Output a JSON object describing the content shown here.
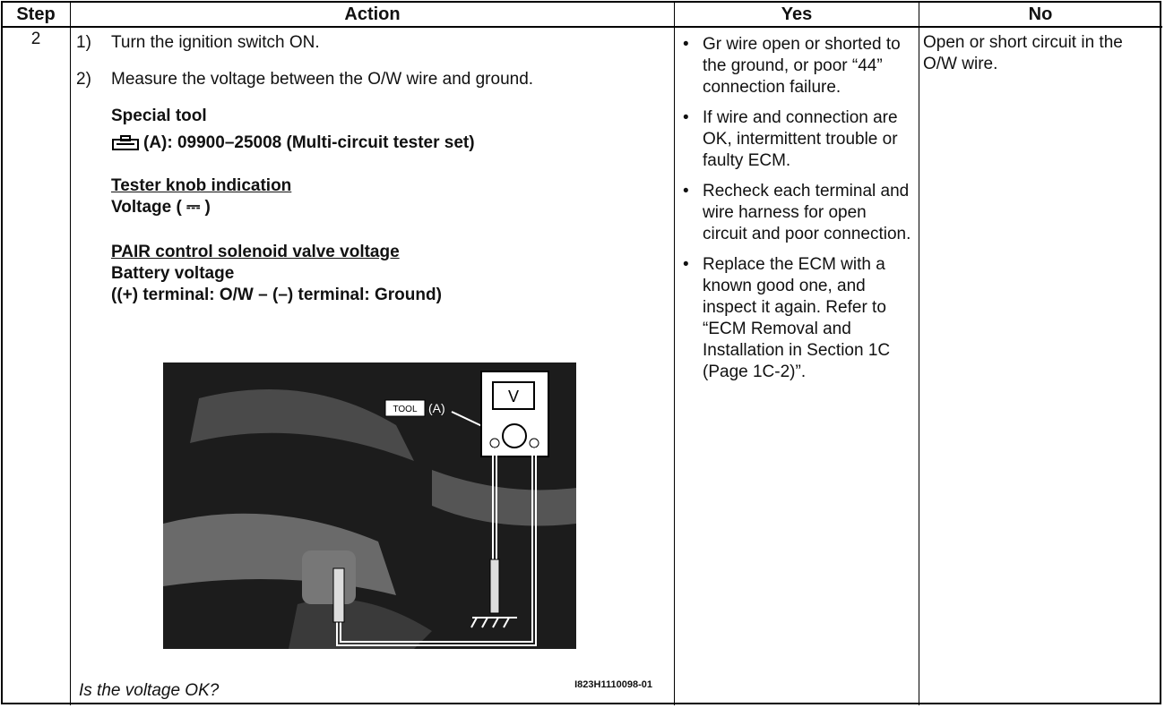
{
  "table": {
    "headers": [
      "Step",
      "Action",
      "Yes",
      "No"
    ],
    "step": "2",
    "action": {
      "steps": [
        {
          "num": "1)",
          "text": "Turn the ignition switch ON."
        },
        {
          "num": "2)",
          "text": "Measure the voltage between the O/W wire and ground."
        }
      ],
      "special_tool_heading": "Special tool",
      "special_tool": "(A):  09900–25008 (Multi-circuit tester set)",
      "tester_knob_heading": "Tester knob indication",
      "tester_knob": "Voltage ( ⎓ )",
      "voltage_heading": "PAIR control solenoid valve voltage",
      "voltage_lines": [
        "Battery voltage",
        "((+) terminal: O/W – (–) terminal: Ground)"
      ],
      "figure": {
        "tool_label": "TOOL",
        "tool_ref": "(A)",
        "meter": "V",
        "code": "I823H1110098-01"
      },
      "question": "Is the voltage OK?"
    },
    "yes": [
      "Gr wire open or shorted to the ground, or poor “44” connection failure.",
      "If wire and connection are OK, intermittent trouble or faulty ECM.",
      "Recheck each terminal and wire harness for open circuit and poor connection.",
      "Replace the ECM with a known good one, and inspect it again. Refer to “ECM Removal and Installation in Section 1C (Page 1C-2)”."
    ],
    "no": "Open or short circuit in the O/W wire."
  }
}
